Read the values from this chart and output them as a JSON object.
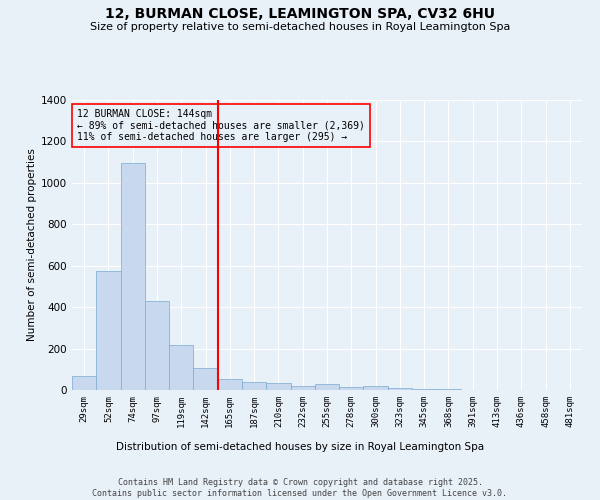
{
  "title": "12, BURMAN CLOSE, LEAMINGTON SPA, CV32 6HU",
  "subtitle": "Size of property relative to semi-detached houses in Royal Leamington Spa",
  "xlabel": "Distribution of semi-detached houses by size in Royal Leamington Spa",
  "ylabel": "Number of semi-detached properties",
  "categories": [
    "29sqm",
    "52sqm",
    "74sqm",
    "97sqm",
    "119sqm",
    "142sqm",
    "165sqm",
    "187sqm",
    "210sqm",
    "232sqm",
    "255sqm",
    "278sqm",
    "300sqm",
    "323sqm",
    "345sqm",
    "368sqm",
    "391sqm",
    "413sqm",
    "436sqm",
    "458sqm",
    "481sqm"
  ],
  "values": [
    70,
    575,
    1095,
    430,
    215,
    105,
    55,
    40,
    35,
    20,
    30,
    15,
    20,
    10,
    5,
    5,
    0,
    0,
    0,
    0,
    0
  ],
  "bar_color": "#c8d8ee",
  "bar_edge_color": "#7aaad0",
  "vline_x": 5.5,
  "vline_color": "red",
  "annotation_title": "12 BURMAN CLOSE: 144sqm",
  "annotation_line1": "← 89% of semi-detached houses are smaller (2,369)",
  "annotation_line2": "11% of semi-detached houses are larger (295) →",
  "annotation_box_color": "red",
  "ylim": [
    0,
    1400
  ],
  "yticks": [
    0,
    200,
    400,
    600,
    800,
    1000,
    1200,
    1400
  ],
  "background_color": "#e8f0f8",
  "footer_line1": "Contains HM Land Registry data © Crown copyright and database right 2025.",
  "footer_line2": "Contains public sector information licensed under the Open Government Licence v3.0."
}
